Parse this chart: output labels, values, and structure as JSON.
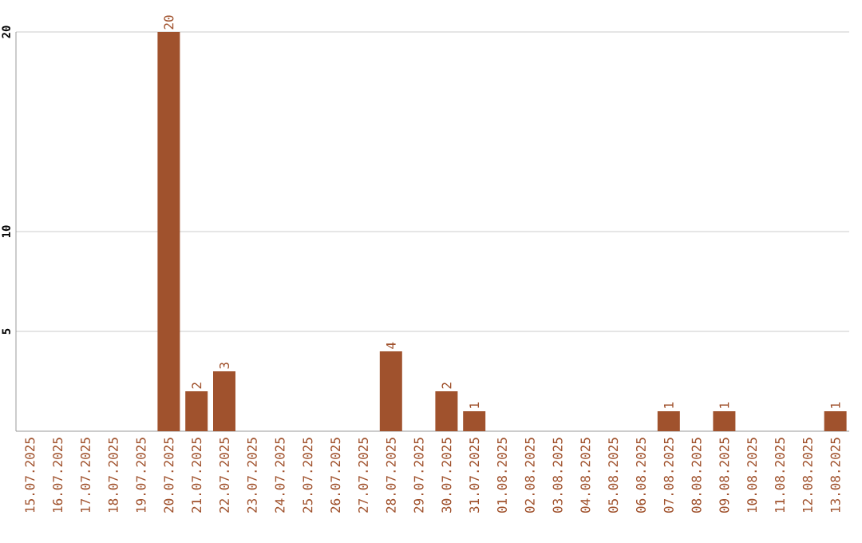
{
  "chart_data": {
    "type": "bar",
    "categories": [
      "15.07.2025",
      "16.07.2025",
      "17.07.2025",
      "18.07.2025",
      "19.07.2025",
      "20.07.2025",
      "21.07.2025",
      "22.07.2025",
      "23.07.2025",
      "24.07.2025",
      "25.07.2025",
      "26.07.2025",
      "27.07.2025",
      "28.07.2025",
      "29.07.2025",
      "30.07.2025",
      "31.07.2025",
      "01.08.2025",
      "02.08.2025",
      "03.08.2025",
      "04.08.2025",
      "05.08.2025",
      "06.08.2025",
      "07.08.2025",
      "08.08.2025",
      "09.08.2025",
      "10.08.2025",
      "11.08.2025",
      "12.08.2025",
      "13.08.2025"
    ],
    "values": [
      null,
      null,
      null,
      null,
      null,
      20,
      2,
      3,
      null,
      null,
      null,
      null,
      null,
      4,
      null,
      2,
      1,
      null,
      null,
      null,
      null,
      null,
      null,
      1,
      null,
      1,
      null,
      null,
      null,
      1
    ],
    "color": "#a0522d",
    "ylim": [
      0,
      20
    ],
    "yticks": [
      5,
      10,
      20
    ],
    "grid": "y",
    "data_labels": true
  }
}
